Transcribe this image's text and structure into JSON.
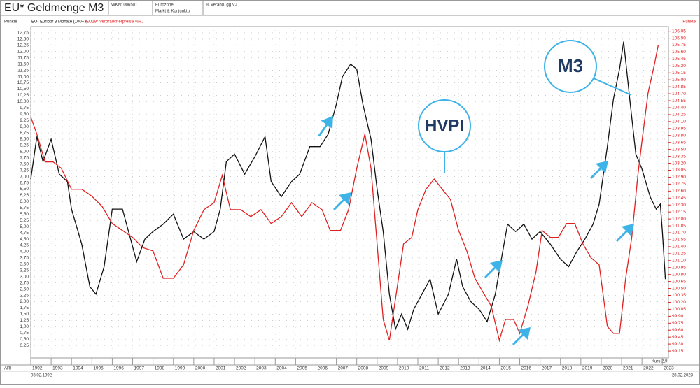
{
  "chart_data": {
    "type": "line",
    "title": "EU* Geldmenge M3",
    "header": [
      "WKN: 006501",
      "Eurozone",
      "Markt & Konjunktur",
      "% Veränd. gg VJ"
    ],
    "y_label": "Punkte",
    "y2_label": "Punkte",
    "footer": {
      "left": "ARI",
      "start": "03.02.1992",
      "end": "28.02.2023",
      "price": "Kurs:2,9I"
    },
    "annotations": [
      "M3",
      "HVPI"
    ],
    "grid": true,
    "xlim": [
      1992,
      2023.3
    ],
    "xticks": [
      1992,
      1993,
      1994,
      1995,
      1996,
      1997,
      1998,
      1999,
      2000,
      2001,
      2002,
      2003,
      2004,
      2005,
      2006,
      2007,
      2008,
      2009,
      2010,
      2011,
      2012,
      2013,
      2014,
      2015,
      2016,
      2017,
      2018,
      2019,
      2020,
      2021,
      2022,
      2023
    ],
    "ylim": [
      -0.25,
      13.0
    ],
    "yticks": [
      {
        "value": 0.25,
        "label": "0,25"
      },
      {
        "value": 0.5,
        "label": "0,50"
      },
      {
        "value": 0.75,
        "label": "0,75"
      },
      {
        "value": 1,
        "label": "1,00"
      },
      {
        "value": 1.25,
        "label": "1,25"
      },
      {
        "value": 1.5,
        "label": "1,50"
      },
      {
        "value": 1.75,
        "label": "1,75"
      },
      {
        "value": 2,
        "label": "2,00"
      },
      {
        "value": 2.25,
        "label": "2,25"
      },
      {
        "value": 2.5,
        "label": "2,50"
      },
      {
        "value": 2.75,
        "label": "2,75"
      },
      {
        "value": 3,
        "label": "3,00"
      },
      {
        "value": 3.25,
        "label": "3,25"
      },
      {
        "value": 3.5,
        "label": "3,50"
      },
      {
        "value": 3.75,
        "label": "3,75"
      },
      {
        "value": 4,
        "label": "4,00"
      },
      {
        "value": 4.25,
        "label": "4,25"
      },
      {
        "value": 4.5,
        "label": "4,50"
      },
      {
        "value": 4.75,
        "label": "4,75"
      },
      {
        "value": 5,
        "label": "5,00"
      },
      {
        "value": 5.25,
        "label": "5,25"
      },
      {
        "value": 5.5,
        "label": "5,50"
      },
      {
        "value": 5.75,
        "label": "5,75"
      },
      {
        "value": 6,
        "label": "6,00"
      },
      {
        "value": 6.25,
        "label": "6,25"
      },
      {
        "value": 6.5,
        "label": "6,50"
      },
      {
        "value": 6.75,
        "label": "6,75"
      },
      {
        "value": 7,
        "label": "7,00"
      },
      {
        "value": 7.25,
        "label": "7,25"
      },
      {
        "value": 7.5,
        "label": "7,50"
      },
      {
        "value": 7.75,
        "label": "7,75"
      },
      {
        "value": 8,
        "label": "8,00"
      },
      {
        "value": 8.25,
        "label": "8,25"
      },
      {
        "value": 8.5,
        "label": "8,50"
      },
      {
        "value": 8.75,
        "label": "8,75"
      },
      {
        "value": 9,
        "label": "9,00"
      },
      {
        "value": 9.25,
        "label": "9,25"
      },
      {
        "value": 9.5,
        "label": "9,50"
      },
      {
        "value": 9.75,
        "label": "9,75"
      },
      {
        "value": 10,
        "label": "10,00"
      },
      {
        "value": 10.25,
        "label": "10,25"
      },
      {
        "value": 10.5,
        "label": "10,50"
      },
      {
        "value": 10.75,
        "label": "10,75"
      },
      {
        "value": 11,
        "label": "11,00"
      },
      {
        "value": 11.25,
        "label": "11,25"
      },
      {
        "value": 11.5,
        "label": "11,50"
      },
      {
        "value": 11.75,
        "label": "11,75"
      },
      {
        "value": 12,
        "label": "12,00"
      },
      {
        "value": 12.25,
        "label": "12,25"
      },
      {
        "value": 12.5,
        "label": "12,50"
      },
      {
        "value": 12.75,
        "label": "12,75"
      }
    ],
    "y2lim": [
      99.0,
      106.15
    ],
    "y2ticks": [
      {
        "value": 99.15,
        "label": "99.15"
      },
      {
        "value": 99.3,
        "label": "99.30"
      },
      {
        "value": 99.45,
        "label": "99.45"
      },
      {
        "value": 99.6,
        "label": "99.60"
      },
      {
        "value": 99.75,
        "label": "99.75"
      },
      {
        "value": 99.9,
        "label": "99.90"
      },
      {
        "value": 100.05,
        "label": "100.05"
      },
      {
        "value": 100.2,
        "label": "100.20"
      },
      {
        "value": 100.35,
        "label": "100.35"
      },
      {
        "value": 100.5,
        "label": "100.50"
      },
      {
        "value": 100.65,
        "label": "100.65"
      },
      {
        "value": 100.8,
        "label": "100.80"
      },
      {
        "value": 100.95,
        "label": "100.95"
      },
      {
        "value": 101.1,
        "label": "101.10"
      },
      {
        "value": 101.25,
        "label": "101.25"
      },
      {
        "value": 101.4,
        "label": "101.40"
      },
      {
        "value": 101.55,
        "label": "101.55"
      },
      {
        "value": 101.7,
        "label": "101.70"
      },
      {
        "value": 101.85,
        "label": "101.85"
      },
      {
        "value": 102,
        "label": "102.00"
      },
      {
        "value": 102.15,
        "label": "102.15"
      },
      {
        "value": 102.3,
        "label": "102.30"
      },
      {
        "value": 102.45,
        "label": "102.45"
      },
      {
        "value": 102.6,
        "label": "102.60"
      },
      {
        "value": 102.75,
        "label": "102.75"
      },
      {
        "value": 102.9,
        "label": "102.90"
      },
      {
        "value": 103.05,
        "label": "103.05"
      },
      {
        "value": 103.2,
        "label": "103.20"
      },
      {
        "value": 103.35,
        "label": "103.35"
      },
      {
        "value": 103.5,
        "label": "103.50"
      },
      {
        "value": 103.65,
        "label": "103.65"
      },
      {
        "value": 103.8,
        "label": "103.80"
      },
      {
        "value": 103.95,
        "label": "103.95"
      },
      {
        "value": 104.1,
        "label": "104.10"
      },
      {
        "value": 104.25,
        "label": "104.25"
      },
      {
        "value": 104.4,
        "label": "104.40"
      },
      {
        "value": 104.55,
        "label": "104.55"
      },
      {
        "value": 104.7,
        "label": "104.70"
      },
      {
        "value": 104.85,
        "label": "104.85"
      },
      {
        "value": 105,
        "label": "105.00"
      },
      {
        "value": 105.15,
        "label": "105.15"
      },
      {
        "value": 105.3,
        "label": "105.30"
      },
      {
        "value": 105.45,
        "label": "105.45"
      },
      {
        "value": 105.6,
        "label": "105.60"
      },
      {
        "value": 105.75,
        "label": "105.75"
      },
      {
        "value": 105.9,
        "label": "105.90"
      },
      {
        "value": 106.05,
        "label": "106.05"
      }
    ],
    "series": [
      {
        "name": "EU- Euribor 3 Monate (100+3)",
        "color": "#111111",
        "x": [
          1992.0,
          1992.3,
          1992.6,
          1993.0,
          1993.4,
          1993.8,
          1994.0,
          1994.5,
          1994.9,
          1995.2,
          1995.6,
          1996.0,
          1996.5,
          1996.8,
          1997.2,
          1997.6,
          1998.0,
          1998.5,
          1999.0,
          1999.5,
          2000.0,
          2000.5,
          2001.0,
          2001.3,
          2001.6,
          2002.0,
          2002.5,
          2003.0,
          2003.5,
          2003.8,
          2004.3,
          2004.8,
          2005.2,
          2005.7,
          2006.2,
          2006.6,
          2007.0,
          2007.3,
          2007.7,
          2008.0,
          2008.3,
          2008.7,
          2009.0,
          2009.3,
          2009.6,
          2009.9,
          2010.2,
          2010.5,
          2010.8,
          2011.2,
          2011.6,
          2012.0,
          2012.5,
          2012.9,
          2013.2,
          2013.6,
          2014.0,
          2014.4,
          2014.8,
          2015.1,
          2015.4,
          2015.8,
          2016.2,
          2016.6,
          2017.0,
          2017.5,
          2018.0,
          2018.4,
          2018.8,
          2019.2,
          2019.6,
          2019.9,
          2020.3,
          2020.6,
          2020.9,
          2021.1,
          2021.4,
          2021.7,
          2022.0,
          2022.4,
          2022.7,
          2022.9,
          2023.0,
          2023.15
        ],
        "values": [
          6.9,
          8.6,
          7.6,
          8.5,
          7.1,
          6.8,
          5.7,
          4.3,
          2.6,
          2.3,
          3.4,
          5.7,
          5.7,
          4.8,
          3.6,
          4.5,
          4.8,
          5.1,
          5.5,
          4.5,
          4.8,
          4.5,
          4.8,
          5.7,
          7.6,
          7.9,
          7.1,
          7.8,
          8.6,
          6.8,
          6.2,
          6.8,
          7.1,
          8.2,
          8.2,
          8.7,
          9.9,
          11.0,
          11.5,
          11.3,
          9.9,
          8.5,
          6.5,
          4.8,
          2.3,
          0.9,
          1.5,
          0.9,
          1.7,
          2.3,
          2.9,
          1.5,
          2.3,
          3.7,
          2.6,
          2.0,
          1.7,
          1.2,
          2.3,
          3.7,
          5.1,
          4.8,
          5.1,
          4.5,
          4.8,
          4.3,
          3.7,
          3.4,
          4.0,
          4.5,
          5.1,
          5.9,
          8.2,
          10.1,
          11.3,
          12.4,
          10.1,
          7.9,
          7.3,
          6.2,
          5.7,
          5.9,
          4.8,
          2.9
        ]
      },
      {
        "name": "EU19* Verbraucherpreise %VJ",
        "color": "#e02020",
        "axis": "y2",
        "x": [
          1992.0,
          1992.3,
          1992.7,
          1993.1,
          1993.5,
          1994.0,
          1994.5,
          1995.0,
          1995.5,
          1996.0,
          1996.5,
          1997.0,
          1997.5,
          1998.0,
          1998.5,
          1999.0,
          1999.5,
          2000.0,
          2000.5,
          2001.0,
          2001.4,
          2001.8,
          2002.3,
          2002.8,
          2003.3,
          2003.8,
          2004.3,
          2004.8,
          2005.3,
          2005.8,
          2006.3,
          2006.7,
          2007.2,
          2007.6,
          2008.0,
          2008.4,
          2008.7,
          2009.0,
          2009.3,
          2009.6,
          2009.9,
          2010.3,
          2010.7,
          2011.0,
          2011.4,
          2011.8,
          2012.2,
          2012.6,
          2013.0,
          2013.4,
          2013.8,
          2014.2,
          2014.6,
          2015.0,
          2015.3,
          2015.7,
          2016.0,
          2016.4,
          2016.8,
          2017.1,
          2017.5,
          2017.9,
          2018.3,
          2018.7,
          2019.1,
          2019.5,
          2019.9,
          2020.3,
          2020.6,
          2020.9,
          2021.2,
          2021.5,
          2021.8,
          2022.0,
          2022.3,
          2022.6,
          2022.8
        ],
        "values": [
          104.2,
          103.83,
          103.23,
          103.23,
          103.09,
          102.64,
          102.64,
          102.49,
          102.27,
          101.9,
          101.75,
          101.6,
          101.38,
          101.31,
          100.72,
          100.72,
          101.01,
          101.75,
          102.2,
          102.35,
          102.94,
          102.2,
          102.2,
          102.05,
          102.2,
          101.9,
          102.05,
          102.35,
          102.05,
          102.35,
          102.2,
          101.75,
          101.75,
          102.2,
          103.09,
          103.83,
          103.09,
          101.46,
          99.83,
          99.38,
          100.27,
          101.46,
          101.6,
          102.2,
          102.64,
          102.86,
          102.64,
          102.42,
          101.75,
          101.31,
          100.72,
          100.42,
          100.12,
          99.38,
          99.83,
          99.83,
          99.53,
          100.12,
          100.86,
          101.75,
          101.6,
          101.6,
          101.9,
          101.9,
          101.46,
          101.16,
          101.01,
          99.68,
          99.53,
          99.53,
          100.72,
          101.6,
          102.94,
          103.68,
          104.72,
          105.31,
          105.75
        ]
      }
    ]
  }
}
